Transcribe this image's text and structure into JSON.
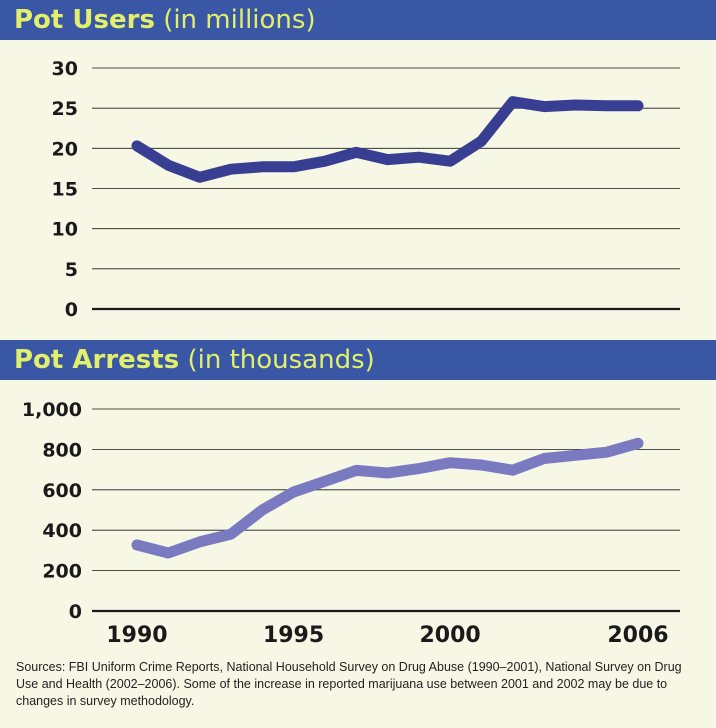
{
  "chart_data": [
    {
      "type": "line",
      "title": "Pot Users",
      "subtitle": "(in millions)",
      "x": [
        1990,
        1991,
        1992,
        1993,
        1994,
        1995,
        1996,
        1997,
        1998,
        1999,
        2000,
        2001,
        2002,
        2003,
        2004,
        2005,
        2006
      ],
      "series": [
        {
          "values": [
            20.3,
            17.9,
            16.4,
            17.4,
            17.7,
            17.7,
            18.4,
            19.5,
            18.6,
            18.9,
            18.4,
            20.9,
            25.8,
            25.2,
            25.4,
            25.3,
            25.3
          ],
          "color": "#383e91"
        }
      ],
      "ylim": [
        0,
        30
      ],
      "yticks": [
        "0",
        "5",
        "10",
        "15",
        "20",
        "25",
        "30"
      ],
      "ytick_values": [
        0,
        5,
        10,
        15,
        20,
        25,
        30
      ],
      "grid": true,
      "xlabel": "",
      "ylabel": ""
    },
    {
      "type": "line",
      "title": "Pot Arrests",
      "subtitle": "(in thousands)",
      "x": [
        1990,
        1991,
        1992,
        1993,
        1994,
        1995,
        1996,
        1997,
        1998,
        1999,
        2000,
        2001,
        2002,
        2003,
        2004,
        2005,
        2006
      ],
      "series": [
        {
          "values": [
            327,
            287,
            342,
            380,
            500,
            589,
            642,
            696,
            683,
            705,
            734,
            723,
            697,
            755,
            771,
            786,
            830
          ],
          "color": "#7a7ac1"
        }
      ],
      "ylim": [
        0,
        1000
      ],
      "yticks": [
        "0",
        "200",
        "400",
        "600",
        "800",
        "1,000"
      ],
      "ytick_values": [
        0,
        200,
        400,
        600,
        800,
        1000
      ],
      "xticks": [
        "1990",
        "1995",
        "2000",
        "2006"
      ],
      "xtick_values": [
        1990,
        1995,
        2000,
        2006
      ],
      "grid": true,
      "xlabel": "",
      "ylabel": ""
    }
  ],
  "source_note": "Sources: FBI Uniform Crime Reports, National Household Survey on Drug Abuse (1990–2001), National Survey on Drug Use and Health (2002–2006). Some of the increase in reported marijuana use between 2001 and 2002 may be due to changes in survey methodology.",
  "colors": {
    "band": "#3957a5",
    "title": "#e2ef6c",
    "background": "#f6f7e4"
  }
}
